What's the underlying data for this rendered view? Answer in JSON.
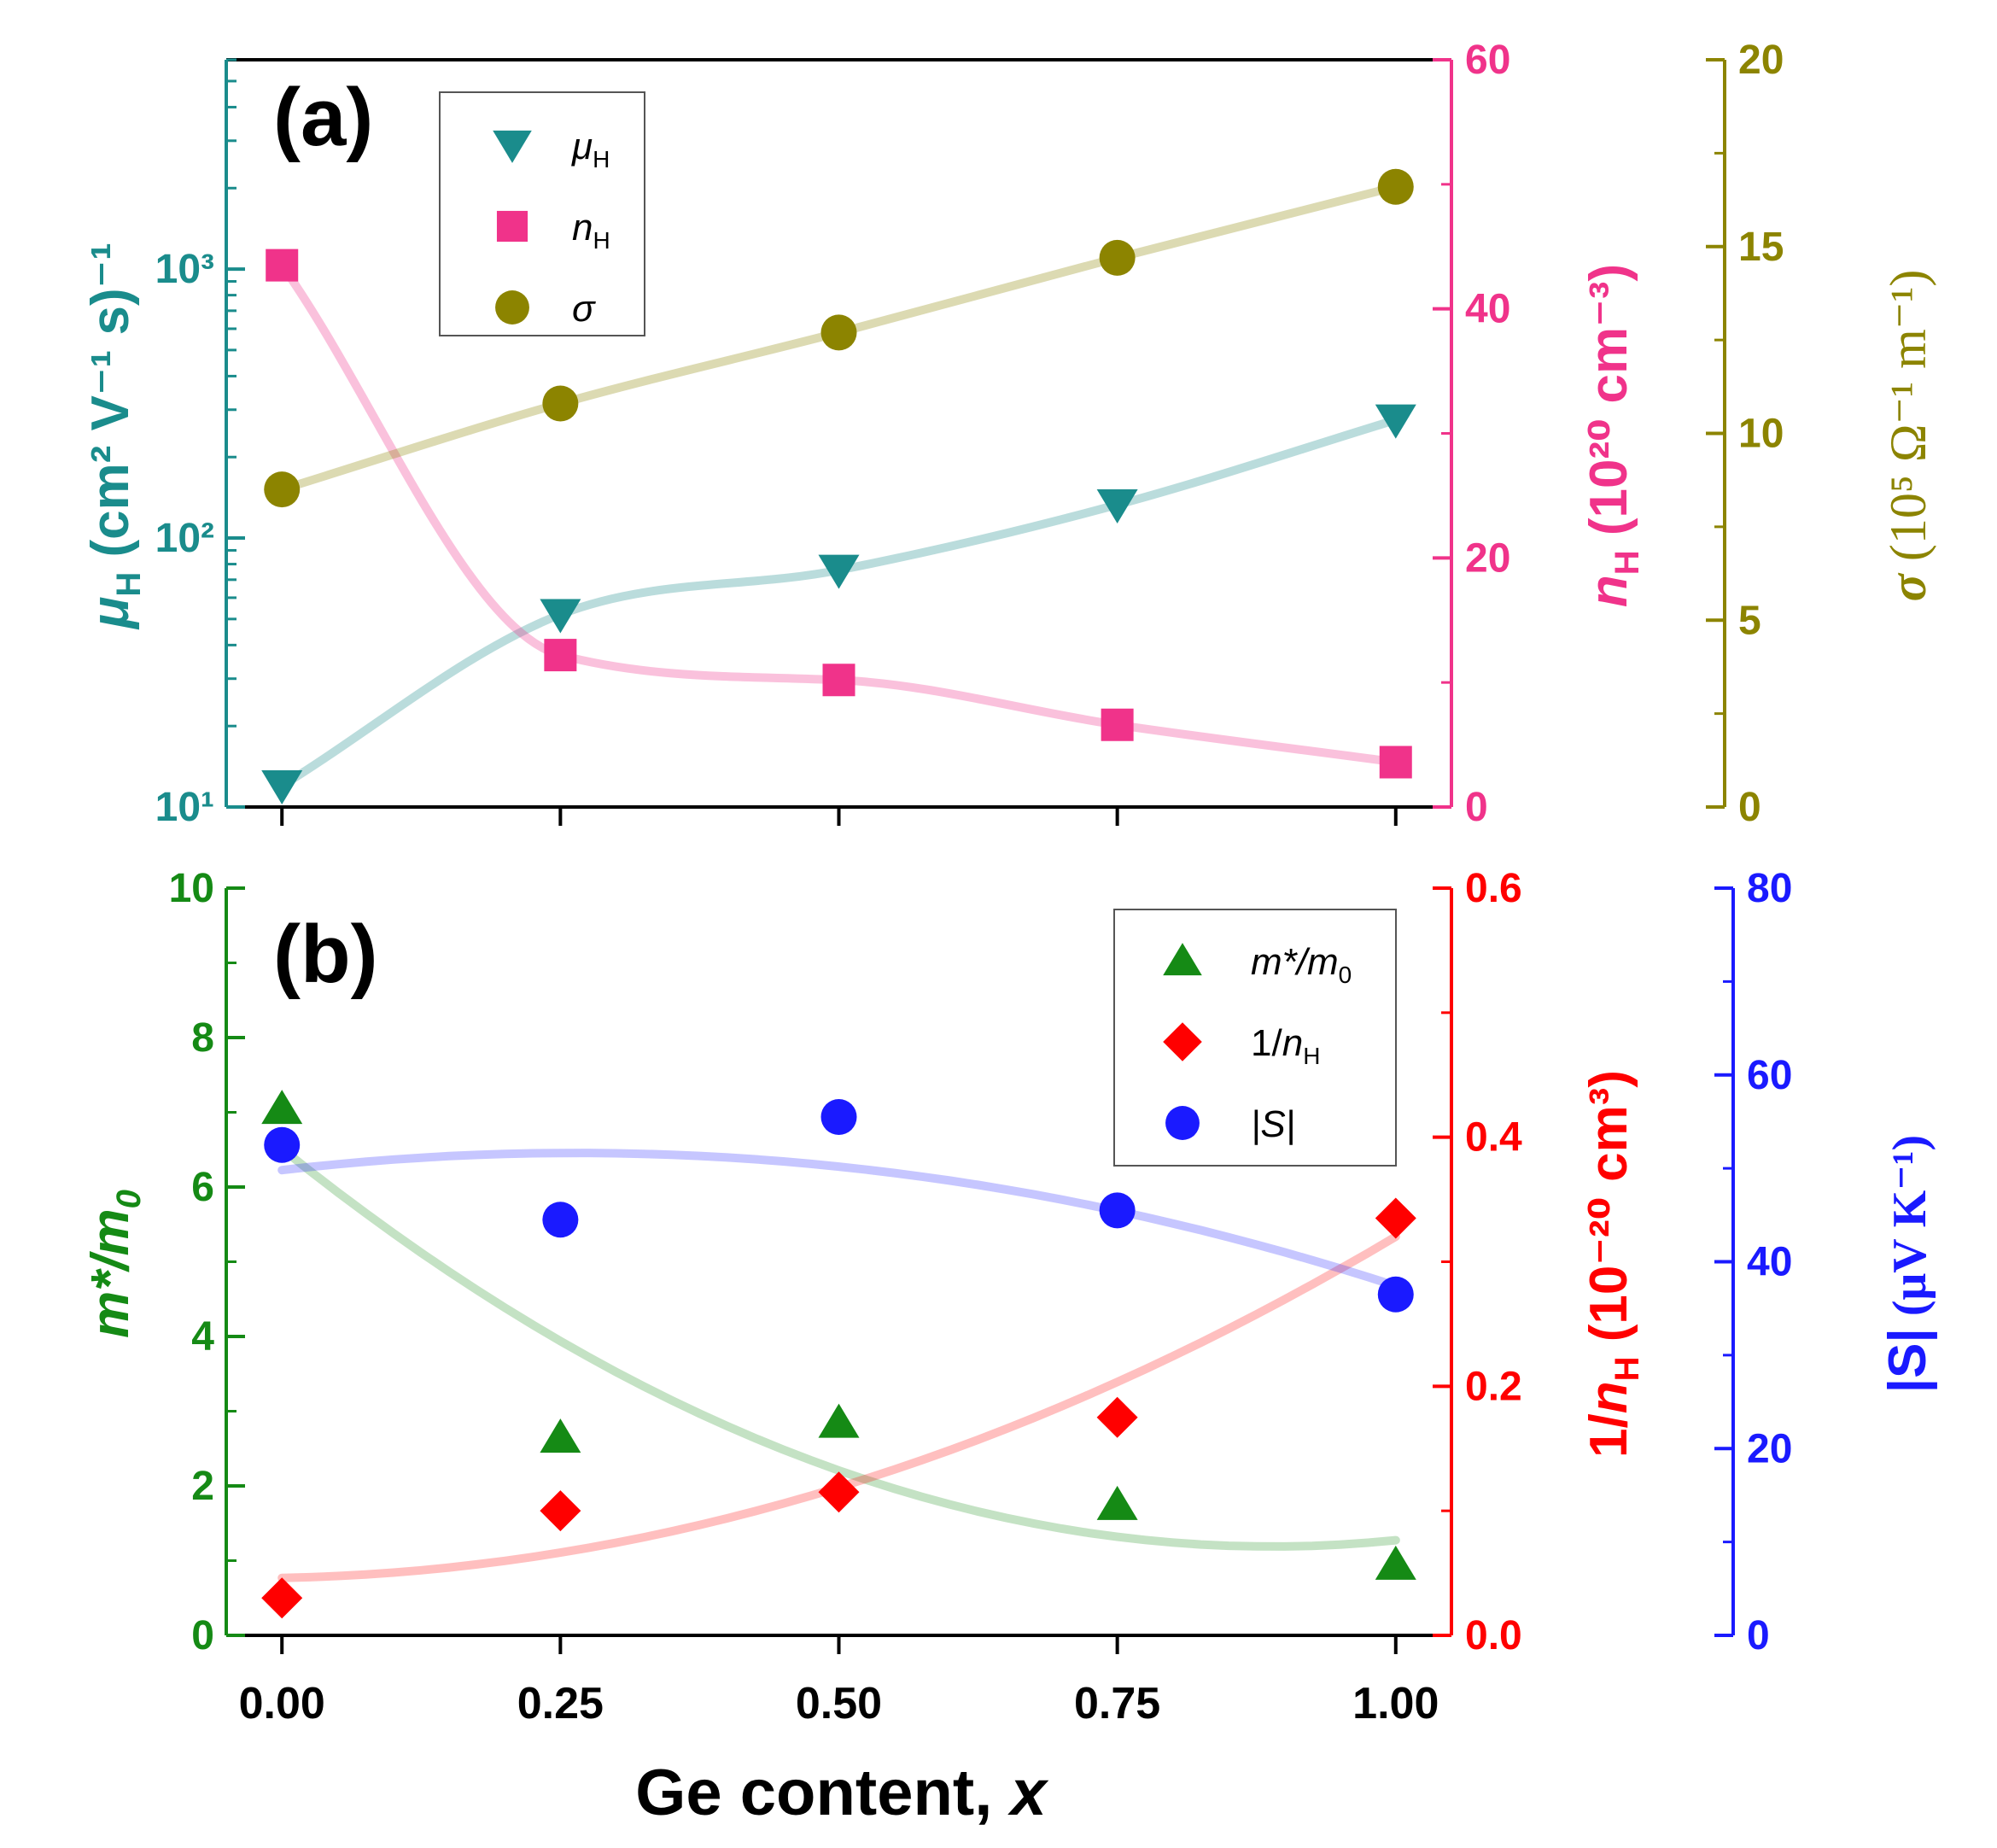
{
  "colors": {
    "mu": "#1a8c8c",
    "n": "#f0338a",
    "sigma": "#8c8400",
    "m": "#158a15",
    "inv": "#ff0000",
    "s": "#1a1aff"
  },
  "chart_data": [
    {
      "type": "scatter",
      "panel": "(a)",
      "x": [
        0.0,
        0.25,
        0.5,
        0.75,
        1.0
      ],
      "xlim": [
        -0.05,
        1.05
      ],
      "legend_position": "top-left",
      "axes": {
        "left": {
          "label_main": "μ",
          "label_sub": "H",
          "label_rest": "(cm² V⁻¹ s)⁻¹",
          "scale": "log",
          "ylim": [
            10,
            6000
          ],
          "ticks": [
            10,
            100,
            1000
          ],
          "tick_labels": [
            "10¹",
            "10²",
            "10³"
          ]
        },
        "right1": {
          "label_main": "n",
          "label_sub": "H",
          "label_rest": "(10²⁰ cm⁻³)",
          "scale": "linear",
          "ylim": [
            0,
            60
          ],
          "ticks": [
            0,
            20,
            40,
            60
          ],
          "tick_labels": [
            "0",
            "20",
            "40",
            "60"
          ]
        },
        "right2": {
          "label_main": "σ",
          "label_rest": "(10⁵ Ω⁻¹ m⁻¹)",
          "scale": "linear",
          "ylim": [
            0,
            20
          ],
          "ticks": [
            0,
            5,
            10,
            15,
            20
          ],
          "tick_labels": [
            "0",
            "5",
            "10",
            "15",
            "20"
          ]
        }
      },
      "series": [
        {
          "name": "μH",
          "name_main": "μ",
          "name_sub": "H",
          "axis": "left",
          "marker": "triangle-down",
          "values": [
            12,
            52,
            76,
            133,
            275
          ]
        },
        {
          "name": "nH",
          "name_main": "n",
          "name_sub": "H",
          "axis": "right1",
          "marker": "square",
          "values": [
            43.5,
            12.2,
            10.2,
            6.6,
            3.6
          ]
        },
        {
          "name": "σ",
          "name_main": "σ",
          "name_sub": "",
          "axis": "right2",
          "marker": "circle",
          "values": [
            8.5,
            10.8,
            12.7,
            14.7,
            16.6
          ]
        }
      ]
    },
    {
      "type": "scatter",
      "panel": "(b)",
      "x": [
        0.0,
        0.25,
        0.5,
        0.75,
        1.0
      ],
      "xlim": [
        -0.05,
        1.05
      ],
      "xticks": [
        "0.00",
        "0.25",
        "0.50",
        "0.75",
        "1.00"
      ],
      "xlabel_main": "Ge content, ",
      "xlabel_var": "x",
      "legend_position": "top-right",
      "axes": {
        "left": {
          "label": "m*/m",
          "label_sub": "0",
          "scale": "linear",
          "ylim": [
            0,
            10
          ],
          "ticks": [
            0,
            2,
            4,
            6,
            8,
            10
          ],
          "tick_labels": [
            "0",
            "2",
            "4",
            "6",
            "8",
            "10"
          ]
        },
        "right1": {
          "label_main": "1/n",
          "label_sub": "H",
          "label_rest": "(10⁻²⁰ cm³)",
          "scale": "linear",
          "ylim": [
            0,
            0.6
          ],
          "ticks": [
            0,
            0.2,
            0.4,
            0.6
          ],
          "tick_labels": [
            "0.0",
            "0.2",
            "0.4",
            "0.6"
          ]
        },
        "right2": {
          "label_main": "|S|",
          "label_rest": "(μV K⁻¹)",
          "scale": "linear",
          "ylim": [
            0,
            80
          ],
          "ticks": [
            0,
            20,
            40,
            60,
            80
          ],
          "tick_labels": [
            "0",
            "20",
            "40",
            "60",
            "80"
          ]
        }
      },
      "series": [
        {
          "name": "m*/m0",
          "name_main": "m*/m",
          "name_sub": "0",
          "axis": "left",
          "marker": "triangle-up",
          "values": [
            7.05,
            2.65,
            2.85,
            1.75,
            0.95
          ]
        },
        {
          "name": "1/nH",
          "name_main": "1/n",
          "name_sub": "H",
          "axis": "right1",
          "marker": "diamond",
          "values": [
            0.03,
            0.1,
            0.115,
            0.175,
            0.335
          ]
        },
        {
          "name": "|S|",
          "name_main": "|S|",
          "name_sub": "",
          "axis": "right2",
          "marker": "circle",
          "values": [
            52.5,
            44.5,
            55.5,
            45.5,
            36.5
          ]
        }
      ]
    }
  ]
}
